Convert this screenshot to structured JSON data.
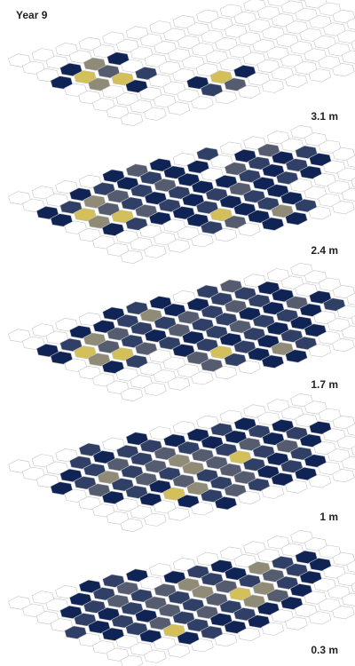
{
  "header": {
    "title": "Year 9"
  },
  "colors": {
    "empty": "#ffffff",
    "low": "#0f2454",
    "mid_low": "#2f3f66",
    "mid": "#565c70",
    "mid_high": "#8f8b77",
    "high": "#d4c05a",
    "max": "#f7e13c"
  },
  "chart_data": {
    "type": "heatmap",
    "title": "Year 9",
    "grid": {
      "rows": 9,
      "cols": 13
    },
    "value_scale": [
      0,
      5
    ],
    "depth_unit": "m",
    "layers": [
      {
        "label": "3.1 m",
        "cells": [
          [
            0,
            0,
            0,
            0,
            0,
            0,
            0,
            0,
            0,
            0,
            0,
            0,
            0
          ],
          [
            0,
            0,
            0,
            0,
            0,
            0,
            0,
            0,
            0,
            0,
            0,
            0,
            0
          ],
          [
            0,
            1,
            4,
            1,
            0,
            0,
            0,
            0,
            0,
            0,
            0,
            0,
            0
          ],
          [
            1,
            5,
            3,
            0,
            0,
            0,
            0,
            0,
            0,
            0,
            0,
            0,
            0
          ],
          [
            0,
            4,
            5,
            2,
            0,
            0,
            0,
            0,
            0,
            0,
            0,
            0,
            0
          ],
          [
            0,
            0,
            1,
            0,
            0,
            0,
            0,
            0,
            0,
            0,
            0,
            0,
            0
          ],
          [
            0,
            0,
            0,
            0,
            1,
            5,
            1,
            0,
            0,
            0,
            0,
            0,
            0
          ],
          [
            0,
            0,
            0,
            0,
            2,
            3,
            0,
            0,
            0,
            0,
            0,
            0,
            0
          ],
          [
            0,
            0,
            0,
            0,
            0,
            0,
            0,
            0,
            0,
            0,
            0,
            0,
            0
          ]
        ]
      },
      {
        "label": "2.4 m",
        "cells": [
          [
            0,
            0,
            0,
            0,
            1,
            3,
            1,
            0,
            2,
            0,
            0,
            0,
            0
          ],
          [
            0,
            0,
            1,
            2,
            1,
            2,
            1,
            1,
            0,
            1,
            3,
            0,
            0
          ],
          [
            1,
            2,
            4,
            3,
            2,
            3,
            1,
            0,
            3,
            2,
            1,
            2,
            0
          ],
          [
            1,
            5,
            3,
            2,
            1,
            2,
            1,
            1,
            2,
            1,
            2,
            1,
            0
          ],
          [
            0,
            4,
            5,
            3,
            2,
            1,
            2,
            3,
            1,
            2,
            1,
            0,
            0
          ],
          [
            0,
            1,
            2,
            1,
            1,
            2,
            1,
            2,
            1,
            0,
            0,
            0,
            0
          ],
          [
            0,
            0,
            0,
            0,
            1,
            5,
            1,
            2,
            1,
            0,
            0,
            0,
            0
          ],
          [
            0,
            0,
            0,
            0,
            2,
            3,
            1,
            4,
            2,
            0,
            0,
            0,
            0
          ],
          [
            0,
            0,
            0,
            0,
            0,
            0,
            1,
            1,
            0,
            0,
            0,
            0,
            0
          ]
        ]
      },
      {
        "label": "1.7 m",
        "cells": [
          [
            0,
            0,
            0,
            0,
            1,
            2,
            1,
            0,
            2,
            3,
            0,
            0,
            0
          ],
          [
            0,
            0,
            1,
            1,
            2,
            4,
            1,
            1,
            2,
            2,
            1,
            0,
            0
          ],
          [
            1,
            2,
            4,
            3,
            2,
            2,
            3,
            2,
            3,
            2,
            1,
            0,
            0
          ],
          [
            1,
            5,
            3,
            2,
            1,
            3,
            2,
            2,
            1,
            1,
            3,
            1,
            0
          ],
          [
            0,
            4,
            5,
            3,
            2,
            1,
            2,
            3,
            2,
            2,
            1,
            2,
            0
          ],
          [
            0,
            1,
            2,
            0,
            1,
            2,
            1,
            2,
            1,
            1,
            0,
            0,
            0
          ],
          [
            0,
            0,
            0,
            0,
            3,
            5,
            2,
            1,
            2,
            1,
            0,
            0,
            0
          ],
          [
            0,
            0,
            0,
            0,
            3,
            2,
            1,
            4,
            2,
            0,
            0,
            0,
            0
          ],
          [
            0,
            0,
            0,
            0,
            0,
            0,
            1,
            1,
            0,
            0,
            0,
            0,
            0
          ]
        ]
      },
      {
        "label": "1 m",
        "cells": [
          [
            0,
            0,
            0,
            2,
            0,
            1,
            0,
            0,
            0,
            0,
            0,
            0,
            0
          ],
          [
            0,
            0,
            2,
            1,
            2,
            2,
            1,
            1,
            2,
            1,
            0,
            0,
            0
          ],
          [
            0,
            1,
            2,
            3,
            2,
            3,
            2,
            1,
            1,
            2,
            1,
            0,
            0
          ],
          [
            1,
            2,
            4,
            2,
            3,
            4,
            3,
            2,
            3,
            1,
            2,
            1,
            0
          ],
          [
            0,
            3,
            2,
            3,
            2,
            4,
            3,
            5,
            2,
            3,
            1,
            0,
            0
          ],
          [
            0,
            1,
            2,
            1,
            3,
            2,
            3,
            2,
            1,
            2,
            0,
            0,
            0
          ],
          [
            0,
            0,
            1,
            5,
            4,
            2,
            3,
            1,
            2,
            1,
            0,
            0,
            0
          ],
          [
            0,
            0,
            0,
            1,
            2,
            3,
            2,
            1,
            1,
            0,
            0,
            0,
            0
          ],
          [
            0,
            0,
            0,
            0,
            1,
            0,
            0,
            0,
            0,
            0,
            0,
            0,
            0
          ]
        ]
      },
      {
        "label": "0.3 m",
        "cells": [
          [
            0,
            0,
            0,
            1,
            2,
            1,
            0,
            0,
            0,
            0,
            0,
            0,
            0
          ],
          [
            0,
            0,
            1,
            2,
            3,
            0,
            1,
            2,
            1,
            0,
            0,
            0,
            0
          ],
          [
            0,
            1,
            2,
            3,
            2,
            3,
            4,
            2,
            1,
            4,
            2,
            1,
            0
          ],
          [
            0,
            2,
            1,
            2,
            3,
            2,
            4,
            3,
            2,
            3,
            2,
            1,
            0
          ],
          [
            2,
            1,
            2,
            1,
            3,
            2,
            3,
            5,
            4,
            2,
            1,
            0,
            0
          ],
          [
            0,
            1,
            2,
            3,
            2,
            3,
            2,
            4,
            3,
            1,
            0,
            0,
            0
          ],
          [
            0,
            0,
            1,
            5,
            2,
            1,
            2,
            1,
            1,
            0,
            0,
            0,
            0
          ],
          [
            0,
            0,
            0,
            1,
            2,
            1,
            1,
            0,
            0,
            0,
            0,
            0,
            0
          ],
          [
            0,
            0,
            0,
            0,
            0,
            0,
            0,
            0,
            0,
            0,
            0,
            0,
            0
          ]
        ]
      }
    ]
  }
}
